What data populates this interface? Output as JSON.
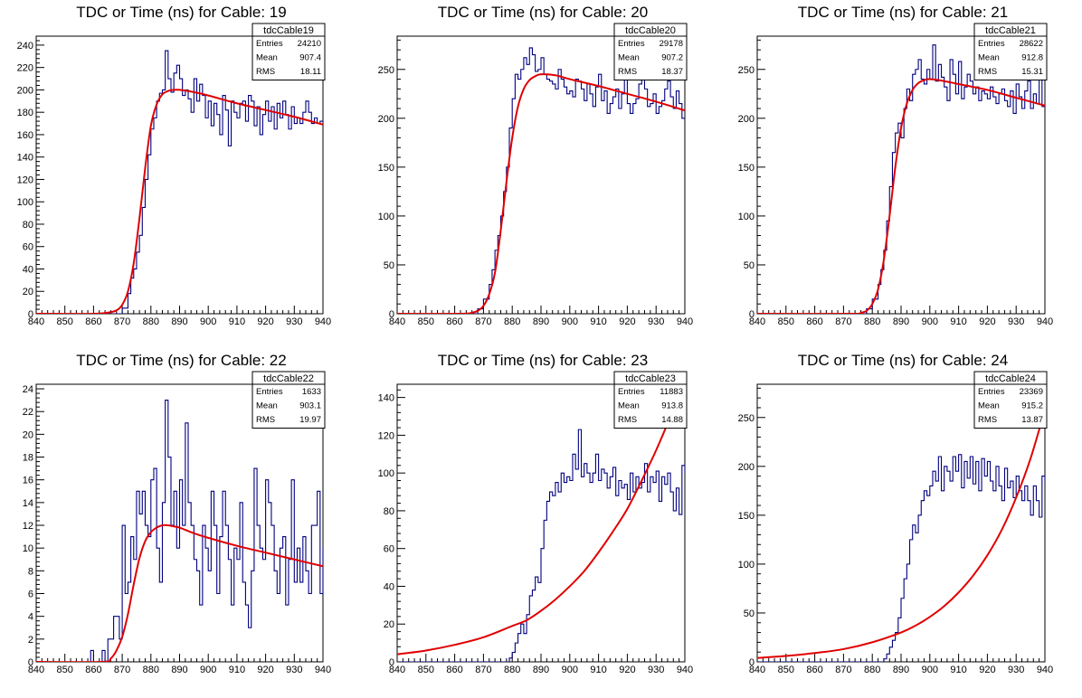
{
  "window": {
    "title": ""
  },
  "colors": {
    "histogram": "#000080",
    "fit": "#e00000",
    "frame": "#000000",
    "background": "#ffffff"
  },
  "chart_data": [
    {
      "type": "line",
      "title": "TDC or Time (ns) for Cable: 19",
      "xlabel": "",
      "ylabel": "",
      "xlim": [
        840,
        940
      ],
      "ylim": [
        0,
        248
      ],
      "x_ticks": [
        840,
        850,
        860,
        870,
        880,
        890,
        900,
        910,
        920,
        930,
        940
      ],
      "y_ticks": [
        0,
        20,
        40,
        60,
        80,
        100,
        120,
        140,
        160,
        180,
        200,
        220,
        240
      ],
      "stats": {
        "title": "tdcCable19",
        "rows": [
          {
            "label": "Entries",
            "value": "24210"
          },
          {
            "label": "Mean",
            "value": "907.4"
          },
          {
            "label": "RMS",
            "value": "18.11"
          }
        ]
      },
      "hist_x": [
        840,
        870,
        872,
        873,
        874,
        875,
        876,
        877,
        878,
        879,
        880,
        881,
        882,
        883,
        884,
        885,
        886,
        887,
        888,
        889,
        890,
        891,
        892,
        893,
        894,
        895,
        896,
        897,
        898,
        899,
        900,
        901,
        902,
        903,
        904,
        905,
        906,
        907,
        908,
        909,
        910,
        911,
        912,
        913,
        914,
        915,
        916,
        917,
        918,
        919,
        920,
        921,
        922,
        923,
        924,
        925,
        926,
        927,
        928,
        929,
        930,
        931,
        932,
        933,
        934,
        935,
        936,
        937,
        938,
        939,
        940
      ],
      "hist_y": [
        0,
        5,
        18,
        32,
        40,
        55,
        70,
        95,
        120,
        142,
        165,
        175,
        190,
        197,
        200,
        235,
        210,
        198,
        215,
        222,
        210,
        195,
        200,
        192,
        180,
        210,
        190,
        205,
        195,
        175,
        190,
        168,
        188,
        178,
        160,
        195,
        182,
        150,
        190,
        180,
        175,
        188,
        190,
        172,
        195,
        190,
        168,
        185,
        160,
        178,
        190,
        172,
        185,
        165,
        188,
        175,
        190,
        178,
        165,
        185,
        170,
        175,
        170,
        180,
        190,
        180,
        170,
        175,
        170,
        172,
        172
      ],
      "fit": {
        "x": [
          840,
          860,
          865,
          868,
          870,
          872,
          874,
          876,
          878,
          880,
          882,
          884,
          886,
          888,
          890,
          895,
          900,
          910,
          920,
          930,
          940
        ],
        "y": [
          0,
          0,
          1,
          3,
          8,
          20,
          45,
          85,
          130,
          168,
          187,
          196,
          199,
          200,
          200,
          198,
          195,
          188,
          182,
          176,
          169
        ]
      }
    },
    {
      "type": "line",
      "title": "TDC or Time (ns) for Cable: 20",
      "xlabel": "",
      "ylabel": "",
      "xlim": [
        840,
        940
      ],
      "ylim": [
        0,
        284
      ],
      "x_ticks": [
        840,
        850,
        860,
        870,
        880,
        890,
        900,
        910,
        920,
        930,
        940
      ],
      "y_ticks": [
        0,
        50,
        100,
        150,
        200,
        250
      ],
      "stats": {
        "title": "tdcCable20",
        "rows": [
          {
            "label": "Entries",
            "value": "29178"
          },
          {
            "label": "Mean",
            "value": "907.2"
          },
          {
            "label": "RMS",
            "value": "18.37"
          }
        ]
      },
      "hist_x": [
        840,
        868,
        870,
        872,
        873,
        874,
        875,
        876,
        877,
        878,
        879,
        880,
        881,
        882,
        883,
        884,
        885,
        886,
        887,
        888,
        889,
        890,
        891,
        892,
        893,
        894,
        895,
        896,
        897,
        898,
        899,
        900,
        901,
        902,
        903,
        904,
        905,
        906,
        907,
        908,
        909,
        910,
        911,
        912,
        913,
        914,
        915,
        916,
        917,
        918,
        919,
        920,
        921,
        922,
        923,
        924,
        925,
        926,
        927,
        928,
        929,
        930,
        931,
        932,
        933,
        934,
        935,
        936,
        937,
        938,
        939,
        940
      ],
      "hist_y": [
        0,
        5,
        15,
        30,
        45,
        65,
        80,
        100,
        125,
        150,
        190,
        220,
        245,
        240,
        250,
        262,
        255,
        272,
        265,
        248,
        250,
        262,
        245,
        240,
        238,
        235,
        230,
        250,
        240,
        232,
        225,
        228,
        222,
        240,
        238,
        230,
        218,
        235,
        225,
        212,
        232,
        245,
        218,
        228,
        205,
        215,
        222,
        230,
        210,
        225,
        240,
        215,
        205,
        215,
        220,
        235,
        240,
        230,
        212,
        215,
        225,
        205,
        212,
        218,
        230,
        238,
        222,
        210,
        228,
        215,
        200,
        200
      ],
      "fit": {
        "x": [
          840,
          862,
          866,
          868,
          870,
          872,
          874,
          876,
          878,
          880,
          882,
          884,
          886,
          888,
          890,
          895,
          900,
          910,
          920,
          930,
          940
        ],
        "y": [
          0,
          0,
          1,
          3,
          8,
          20,
          42,
          85,
          135,
          180,
          212,
          230,
          239,
          243,
          245,
          244,
          240,
          233,
          225,
          217,
          208
        ]
      }
    },
    {
      "type": "line",
      "title": "TDC or Time (ns) for Cable: 21",
      "xlabel": "",
      "ylabel": "",
      "xlim": [
        840,
        940
      ],
      "ylim": [
        0,
        284
      ],
      "x_ticks": [
        840,
        850,
        860,
        870,
        880,
        890,
        900,
        910,
        920,
        930,
        940
      ],
      "y_ticks": [
        0,
        50,
        100,
        150,
        200,
        250
      ],
      "stats": {
        "title": "tdcCable21",
        "rows": [
          {
            "label": "Entries",
            "value": "28622"
          },
          {
            "label": "Mean",
            "value": "912.8"
          },
          {
            "label": "RMS",
            "value": "15.31"
          }
        ]
      },
      "hist_x": [
        840,
        878,
        880,
        882,
        883,
        884,
        885,
        886,
        887,
        888,
        889,
        890,
        891,
        892,
        893,
        894,
        895,
        896,
        897,
        898,
        899,
        900,
        901,
        902,
        903,
        904,
        905,
        906,
        907,
        908,
        909,
        910,
        911,
        912,
        913,
        914,
        915,
        916,
        917,
        918,
        919,
        920,
        921,
        922,
        923,
        924,
        925,
        926,
        927,
        928,
        929,
        930,
        931,
        932,
        933,
        934,
        935,
        936,
        937,
        938,
        939,
        940
      ],
      "hist_y": [
        0,
        5,
        15,
        30,
        45,
        65,
        95,
        130,
        165,
        185,
        195,
        180,
        210,
        230,
        218,
        245,
        250,
        260,
        240,
        235,
        250,
        240,
        275,
        238,
        255,
        242,
        232,
        218,
        260,
        245,
        225,
        258,
        220,
        232,
        245,
        238,
        225,
        232,
        218,
        228,
        225,
        220,
        232,
        222,
        215,
        225,
        230,
        218,
        212,
        228,
        205,
        235,
        222,
        210,
        228,
        238,
        210,
        225,
        215,
        245,
        212,
        212
      ],
      "fit": {
        "x": [
          840,
          873,
          876,
          878,
          880,
          882,
          884,
          886,
          888,
          890,
          892,
          894,
          896,
          898,
          900,
          905,
          910,
          920,
          930,
          940
        ],
        "y": [
          0,
          0,
          1,
          3,
          10,
          25,
          55,
          100,
          150,
          190,
          215,
          229,
          236,
          239,
          240,
          238,
          235,
          229,
          221,
          213
        ]
      }
    },
    {
      "type": "line",
      "title": "TDC or Time (ns) for Cable: 22",
      "xlabel": "",
      "ylabel": "",
      "xlim": [
        840,
        940
      ],
      "ylim": [
        0,
        24.4
      ],
      "x_ticks": [
        840,
        850,
        860,
        870,
        880,
        890,
        900,
        910,
        920,
        930,
        940
      ],
      "y_ticks": [
        0,
        2,
        4,
        6,
        8,
        10,
        12,
        14,
        16,
        18,
        20,
        22,
        24
      ],
      "stats": {
        "title": "tdcCable22",
        "rows": [
          {
            "label": "Entries",
            "value": "1633"
          },
          {
            "label": "Mean",
            "value": "903.1"
          },
          {
            "label": "RMS",
            "value": "19.97"
          }
        ]
      },
      "hist_x": [
        840,
        859,
        860,
        861,
        862,
        863,
        864,
        865,
        866,
        867,
        868,
        869,
        870,
        871,
        872,
        873,
        874,
        875,
        876,
        877,
        878,
        879,
        880,
        881,
        882,
        883,
        884,
        885,
        886,
        887,
        888,
        889,
        890,
        891,
        892,
        893,
        894,
        895,
        896,
        897,
        898,
        899,
        900,
        901,
        902,
        903,
        904,
        905,
        906,
        907,
        908,
        909,
        910,
        911,
        912,
        913,
        914,
        915,
        916,
        917,
        918,
        919,
        920,
        921,
        922,
        923,
        924,
        925,
        926,
        927,
        928,
        929,
        930,
        931,
        932,
        933,
        934,
        935,
        936,
        937,
        938,
        939,
        940
      ],
      "hist_y": [
        0,
        1,
        0,
        0,
        0,
        1,
        0,
        2,
        2,
        4,
        4,
        2,
        12,
        6,
        7,
        11,
        9,
        15,
        13,
        15,
        12,
        11,
        16,
        17,
        10,
        7,
        14,
        23,
        18,
        12,
        15,
        10,
        16,
        12,
        21,
        14,
        12,
        9,
        8,
        5,
        12,
        10,
        8,
        15,
        12,
        6,
        11,
        15,
        12,
        9,
        5,
        10,
        9,
        14,
        7,
        5,
        3,
        8,
        17,
        12,
        10,
        9,
        16,
        14,
        12,
        8,
        6,
        10,
        11,
        5,
        9,
        16,
        7,
        10,
        7,
        11,
        8,
        6,
        12,
        12,
        15,
        6,
        10,
        10
      ],
      "fit": {
        "x": [
          840,
          863,
          866,
          868,
          870,
          872,
          874,
          876,
          878,
          880,
          882,
          884,
          886,
          888,
          890,
          895,
          900,
          910,
          920,
          930,
          940
        ],
        "y": [
          0,
          0,
          0.3,
          1,
          2.2,
          4.2,
          6.8,
          9.1,
          10.6,
          11.4,
          11.8,
          12.0,
          12.0,
          11.9,
          11.8,
          11.3,
          10.9,
          10.2,
          9.6,
          9.0,
          8.4
        ]
      }
    },
    {
      "type": "line",
      "title": "TDC or Time (ns) for Cable: 23",
      "xlabel": "",
      "ylabel": "",
      "xlim": [
        840,
        940
      ],
      "ylim": [
        0,
        147
      ],
      "x_ticks": [
        840,
        850,
        860,
        870,
        880,
        890,
        900,
        910,
        920,
        930,
        940
      ],
      "y_ticks": [
        0,
        20,
        40,
        60,
        80,
        100,
        120,
        140
      ],
      "stats": {
        "title": "tdcCable23",
        "rows": [
          {
            "label": "Entries",
            "value": "11883"
          },
          {
            "label": "Mean",
            "value": "913.8"
          },
          {
            "label": "RMS",
            "value": "14.88"
          }
        ]
      },
      "hist_x": [
        840,
        879,
        880,
        881,
        882,
        883,
        884,
        885,
        886,
        887,
        888,
        889,
        890,
        891,
        892,
        893,
        894,
        895,
        896,
        897,
        898,
        899,
        900,
        901,
        902,
        903,
        904,
        905,
        906,
        907,
        908,
        909,
        910,
        911,
        912,
        913,
        914,
        915,
        916,
        917,
        918,
        919,
        920,
        921,
        922,
        923,
        924,
        925,
        926,
        927,
        928,
        929,
        930,
        931,
        932,
        933,
        934,
        935,
        936,
        937,
        938,
        939,
        940
      ],
      "hist_y": [
        0,
        2,
        5,
        10,
        15,
        20,
        15,
        25,
        35,
        38,
        45,
        42,
        60,
        75,
        85,
        90,
        88,
        95,
        90,
        100,
        95,
        98,
        96,
        110,
        102,
        123,
        98,
        105,
        100,
        95,
        100,
        110,
        96,
        102,
        100,
        92,
        98,
        103,
        88,
        96,
        92,
        94,
        86,
        100,
        90,
        98,
        92,
        95,
        105,
        90,
        98,
        95,
        101,
        85,
        98,
        94,
        100,
        90,
        80,
        92,
        78,
        104,
        100
      ],
      "fit": {
        "x": [
          840,
          850,
          860,
          870,
          880,
          885,
          890,
          895,
          900,
          905,
          910,
          915,
          920,
          925,
          930,
          935,
          940
        ],
        "y": [
          4,
          6,
          9,
          13,
          19,
          22,
          27,
          33,
          40,
          48,
          58,
          69,
          81,
          96,
          112,
          130,
          150
        ]
      }
    },
    {
      "type": "line",
      "title": "TDC or Time (ns) for Cable: 24",
      "xlabel": "",
      "ylabel": "",
      "xlim": [
        840,
        940
      ],
      "ylim": [
        0,
        284
      ],
      "x_ticks": [
        840,
        850,
        860,
        870,
        880,
        890,
        900,
        910,
        920,
        930,
        940
      ],
      "y_ticks": [
        0,
        50,
        100,
        150,
        200,
        250
      ],
      "stats": {
        "title": "tdcCable24",
        "rows": [
          {
            "label": "Entries",
            "value": "23369"
          },
          {
            "label": "Mean",
            "value": "915.2"
          },
          {
            "label": "RMS",
            "value": "13.87"
          }
        ]
      },
      "hist_x": [
        840,
        884,
        885,
        886,
        887,
        888,
        889,
        890,
        891,
        892,
        893,
        894,
        895,
        896,
        897,
        898,
        899,
        900,
        901,
        902,
        903,
        904,
        905,
        906,
        907,
        908,
        909,
        910,
        911,
        912,
        913,
        914,
        915,
        916,
        917,
        918,
        919,
        920,
        921,
        922,
        923,
        924,
        925,
        926,
        927,
        928,
        929,
        930,
        931,
        932,
        933,
        934,
        935,
        936,
        937,
        938,
        939,
        940
      ],
      "hist_y": [
        0,
        3,
        8,
        15,
        22,
        30,
        45,
        65,
        85,
        100,
        125,
        140,
        132,
        150,
        165,
        175,
        170,
        180,
        195,
        185,
        210,
        175,
        200,
        195,
        185,
        210,
        195,
        212,
        178,
        205,
        188,
        210,
        182,
        205,
        175,
        208,
        190,
        205,
        185,
        175,
        200,
        180,
        165,
        198,
        178,
        185,
        168,
        190,
        175,
        165,
        180,
        165,
        150,
        180,
        165,
        148,
        190,
        185
      ],
      "fit": {
        "x": [
          840,
          850,
          860,
          870,
          880,
          890,
          895,
          900,
          905,
          910,
          915,
          920,
          925,
          930,
          935,
          940
        ],
        "y": [
          4,
          6,
          9,
          13,
          20,
          30,
          37,
          46,
          57,
          71,
          88,
          109,
          135,
          168,
          208,
          258
        ]
      }
    }
  ]
}
